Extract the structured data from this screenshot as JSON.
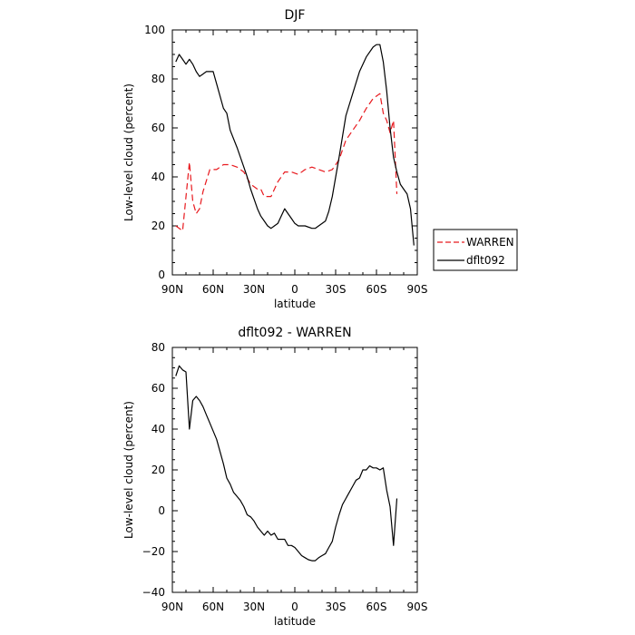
{
  "chart_data": [
    {
      "type": "line",
      "title": "DJF",
      "xlabel": "latitude",
      "ylabel": "Low-level cloud (percent)",
      "xlim": [
        90,
        -90
      ],
      "ylim": [
        0,
        100
      ],
      "x_ticks": [
        90,
        60,
        30,
        0,
        -30,
        -60,
        -90
      ],
      "x_tick_labels": [
        "90N",
        "60N",
        "30N",
        "0",
        "30S",
        "60S",
        "90S"
      ],
      "y_ticks": [
        0,
        20,
        40,
        60,
        80,
        100
      ],
      "y_tick_labels": [
        "0",
        "20",
        "40",
        "60",
        "80",
        "100"
      ],
      "legend": "outside-right",
      "series": [
        {
          "name": "WARREN",
          "color": "#e8191e",
          "dash": "dashed",
          "points": [
            [
              87.5,
              20
            ],
            [
              82.5,
              18
            ],
            [
              77.5,
              46
            ],
            [
              75,
              30
            ],
            [
              72.5,
              25
            ],
            [
              70,
              27
            ],
            [
              67.5,
              34
            ],
            [
              62.5,
              43
            ],
            [
              57.5,
              43
            ],
            [
              52.5,
              45
            ],
            [
              47.5,
              45
            ],
            [
              42.5,
              44
            ],
            [
              37.5,
              42
            ],
            [
              32.5,
              37
            ],
            [
              27.5,
              35
            ],
            [
              25,
              35
            ],
            [
              22.5,
              32
            ],
            [
              17.5,
              32
            ],
            [
              12.5,
              38
            ],
            [
              7.5,
              42
            ],
            [
              2.5,
              42
            ],
            [
              -2.5,
              41
            ],
            [
              -7.5,
              43
            ],
            [
              -12.5,
              44
            ],
            [
              -17.5,
              43
            ],
            [
              -22.5,
              42
            ],
            [
              -27.5,
              43
            ],
            [
              -32.5,
              47
            ],
            [
              -37.5,
              55
            ],
            [
              -42.5,
              59
            ],
            [
              -47.5,
              63
            ],
            [
              -52.5,
              68
            ],
            [
              -57.5,
              72
            ],
            [
              -62.5,
              74
            ],
            [
              -65,
              66
            ],
            [
              -67.5,
              63
            ],
            [
              -70,
              58
            ],
            [
              -72.5,
              63
            ],
            [
              -75,
              33
            ]
          ]
        },
        {
          "name": "dflt092",
          "color": "#000000",
          "dash": "solid",
          "points": [
            [
              87.5,
              87
            ],
            [
              85,
              90
            ],
            [
              82.5,
              88
            ],
            [
              80,
              86
            ],
            [
              77.5,
              88
            ],
            [
              75,
              86
            ],
            [
              72.5,
              83
            ],
            [
              70,
              81
            ],
            [
              67.5,
              82
            ],
            [
              65,
              83
            ],
            [
              62.5,
              83
            ],
            [
              60,
              83
            ],
            [
              57.5,
              78
            ],
            [
              52.5,
              68
            ],
            [
              50,
              66
            ],
            [
              47.5,
              59
            ],
            [
              42.5,
              52
            ],
            [
              37.5,
              44
            ],
            [
              35,
              40
            ],
            [
              32.5,
              35
            ],
            [
              27.5,
              27
            ],
            [
              25,
              24
            ],
            [
              22.5,
              22
            ],
            [
              20,
              20
            ],
            [
              17.5,
              19
            ],
            [
              15,
              20
            ],
            [
              12.5,
              21
            ],
            [
              10,
              24
            ],
            [
              7.5,
              27
            ],
            [
              5,
              25
            ],
            [
              2.5,
              23
            ],
            [
              0,
              21
            ],
            [
              -2.5,
              20
            ],
            [
              -7.5,
              20
            ],
            [
              -12.5,
              19
            ],
            [
              -15,
              19
            ],
            [
              -17.5,
              20
            ],
            [
              -22.5,
              22
            ],
            [
              -25,
              26
            ],
            [
              -27.5,
              32
            ],
            [
              -32.5,
              48
            ],
            [
              -37.5,
              65
            ],
            [
              -42.5,
              74
            ],
            [
              -47.5,
              83
            ],
            [
              -52.5,
              89
            ],
            [
              -57.5,
              93
            ],
            [
              -60,
              94
            ],
            [
              -62.5,
              94
            ],
            [
              -65,
              87
            ],
            [
              -67.5,
              75
            ],
            [
              -70,
              60
            ],
            [
              -72.5,
              48
            ],
            [
              -75,
              42
            ],
            [
              -77.5,
              37
            ],
            [
              -80,
              35
            ],
            [
              -82.5,
              33
            ],
            [
              -85,
              27
            ],
            [
              -87.5,
              12
            ]
          ]
        }
      ]
    },
    {
      "type": "line",
      "title": "dflt092 - WARREN",
      "xlabel": "latitude",
      "ylabel": "Low-level cloud (percent)",
      "xlim": [
        90,
        -90
      ],
      "ylim": [
        -40,
        80
      ],
      "x_ticks": [
        90,
        60,
        30,
        0,
        -30,
        -60,
        -90
      ],
      "x_tick_labels": [
        "90N",
        "60N",
        "30N",
        "0",
        "30S",
        "60S",
        "90S"
      ],
      "y_ticks": [
        -40,
        -20,
        0,
        20,
        40,
        60,
        80
      ],
      "y_tick_labels": [
        "−40",
        "−20",
        "0",
        "20",
        "40",
        "60",
        "80"
      ],
      "series": [
        {
          "color": "#000000",
          "dash": "solid",
          "points": [
            [
              87.5,
              66
            ],
            [
              85,
              71
            ],
            [
              82.5,
              69
            ],
            [
              80,
              68
            ],
            [
              77.5,
              40
            ],
            [
              75,
              54
            ],
            [
              72.5,
              56
            ],
            [
              70,
              54
            ],
            [
              67.5,
              51
            ],
            [
              65,
              47
            ],
            [
              62.5,
              43
            ],
            [
              57.5,
              35
            ],
            [
              52.5,
              23
            ],
            [
              50,
              16
            ],
            [
              47.5,
              13
            ],
            [
              45,
              9
            ],
            [
              42.5,
              7
            ],
            [
              40,
              5
            ],
            [
              37.5,
              2
            ],
            [
              35,
              -2
            ],
            [
              32.5,
              -3
            ],
            [
              30,
              -5
            ],
            [
              27.5,
              -8
            ],
            [
              25,
              -10
            ],
            [
              22.5,
              -12
            ],
            [
              20,
              -10
            ],
            [
              17.5,
              -12
            ],
            [
              15,
              -11
            ],
            [
              12.5,
              -14
            ],
            [
              10,
              -14
            ],
            [
              7.5,
              -14
            ],
            [
              5,
              -17
            ],
            [
              2.5,
              -17
            ],
            [
              0,
              -18
            ],
            [
              -2.5,
              -20
            ],
            [
              -5,
              -22
            ],
            [
              -7.5,
              -23
            ],
            [
              -10,
              -24
            ],
            [
              -12.5,
              -24.5
            ],
            [
              -15,
              -24.5
            ],
            [
              -17.5,
              -23
            ],
            [
              -20,
              -22
            ],
            [
              -22.5,
              -21
            ],
            [
              -25,
              -18
            ],
            [
              -27.5,
              -15
            ],
            [
              -30,
              -8
            ],
            [
              -32.5,
              -2
            ],
            [
              -35,
              3
            ],
            [
              -37.5,
              6
            ],
            [
              -40,
              9
            ],
            [
              -42.5,
              12
            ],
            [
              -45,
              15
            ],
            [
              -47.5,
              16
            ],
            [
              -50,
              20
            ],
            [
              -52.5,
              20
            ],
            [
              -55,
              22
            ],
            [
              -57.5,
              21
            ],
            [
              -60,
              21
            ],
            [
              -62.5,
              20
            ],
            [
              -65,
              21
            ],
            [
              -67.5,
              10
            ],
            [
              -70,
              2
            ],
            [
              -72.5,
              -17
            ],
            [
              -75,
              6
            ]
          ]
        }
      ]
    }
  ]
}
